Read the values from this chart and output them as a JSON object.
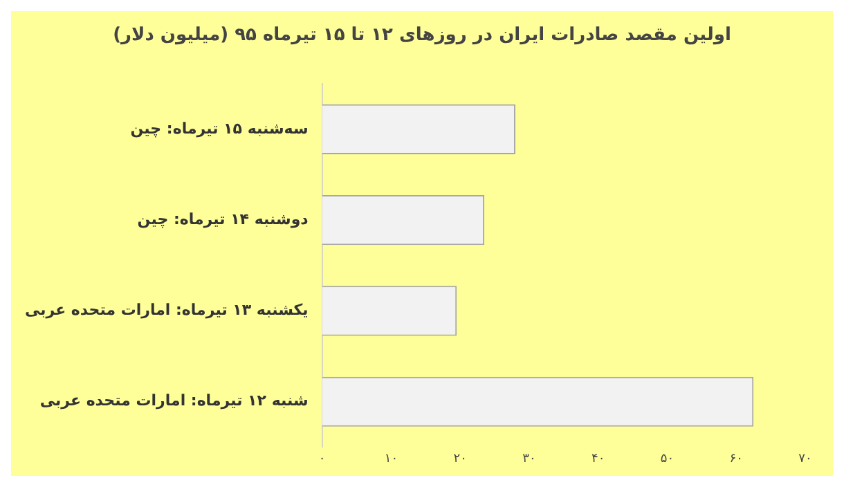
{
  "chart_data": {
    "type": "bar",
    "orientation": "horizontal",
    "title": "اولین مقصد صادرات ایران در روزهای ۱۲ تا ۱۵ تیرماه ۹۵ (میلیون دلار)",
    "categories": [
      "سه‌شنبه ۱۵ تیرماه: چین",
      "دوشنبه ۱۴ تیرماه: چین",
      "یکشنبه ۱۳ تیرماه: امارات متحده عربی",
      "شنبه ۱۲ تیرماه: امارات متحده عربی"
    ],
    "values": [
      28,
      23.5,
      19.5,
      62.5
    ],
    "color": "#f2f2f2",
    "xlim": [
      0,
      70
    ],
    "xticks": [
      {
        "value": 0,
        "label": "۰"
      },
      {
        "value": 10,
        "label": "۱۰"
      },
      {
        "value": 20,
        "label": "۲۰"
      },
      {
        "value": 30,
        "label": "۳۰"
      },
      {
        "value": 40,
        "label": "۴۰"
      },
      {
        "value": 50,
        "label": "۵۰"
      },
      {
        "value": 60,
        "label": "۶۰"
      },
      {
        "value": 70,
        "label": "۷۰"
      }
    ],
    "grid": false,
    "legend": false
  }
}
